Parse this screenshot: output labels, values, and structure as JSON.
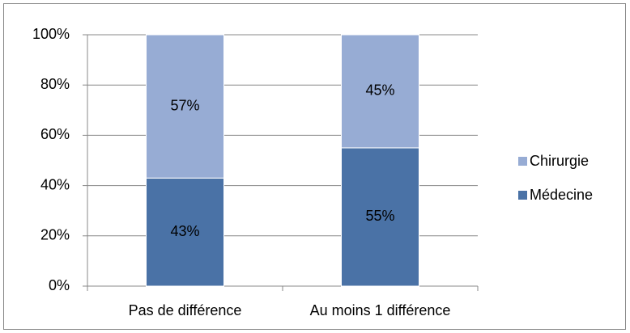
{
  "chart_data": {
    "type": "stacked_bar",
    "categories": [
      "Pas de différence",
      "Au moins 1 différence"
    ],
    "series": [
      {
        "name": "Médecine",
        "color": "#4a72a6",
        "values": [
          43,
          55
        ],
        "value_labels": [
          "43%",
          "55%"
        ]
      },
      {
        "name": "Chirurgie",
        "color": "#97acd4",
        "values": [
          57,
          45
        ],
        "value_labels": [
          "57%",
          "45%"
        ]
      }
    ],
    "ylim": [
      0,
      100
    ],
    "yticks": [
      {
        "value": 0,
        "label": "0%"
      },
      {
        "value": 20,
        "label": "20%"
      },
      {
        "value": 40,
        "label": "40%"
      },
      {
        "value": 60,
        "label": "60%"
      },
      {
        "value": 80,
        "label": "80%"
      },
      {
        "value": 100,
        "label": "100%"
      }
    ],
    "grid": true,
    "legend": "right"
  }
}
